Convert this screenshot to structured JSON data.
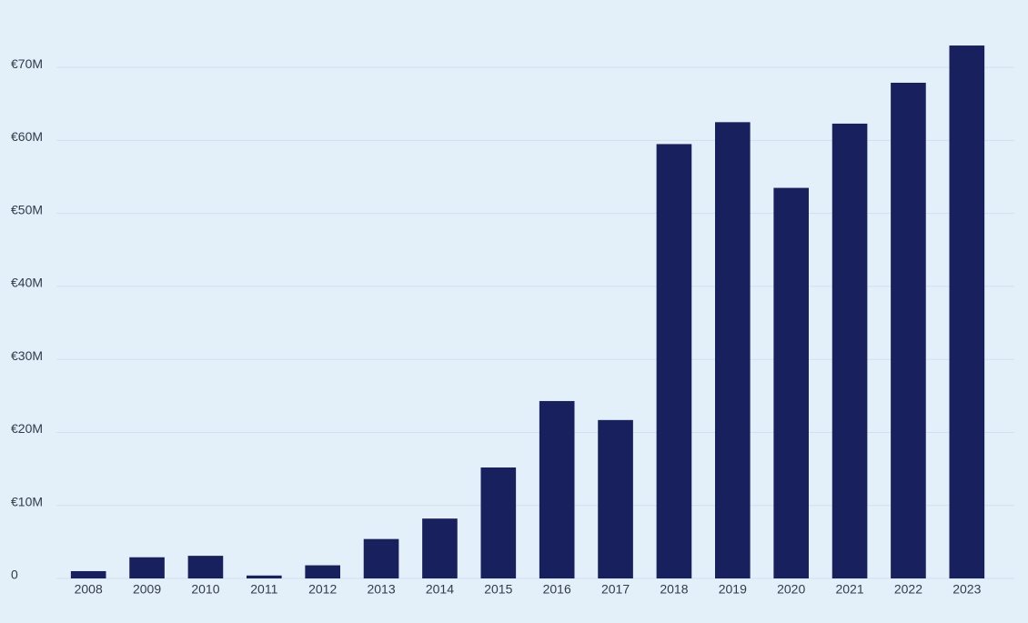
{
  "chart_data": {
    "type": "bar",
    "categories": [
      "2008",
      "2009",
      "2010",
      "2011",
      "2012",
      "2013",
      "2014",
      "2015",
      "2016",
      "2017",
      "2018",
      "2019",
      "2020",
      "2021",
      "2022",
      "2023"
    ],
    "values": [
      1000000,
      2900000,
      3100000,
      400000,
      1800000,
      5400000,
      8200000,
      15200000,
      24300000,
      21700000,
      59500000,
      62500000,
      53500000,
      62300000,
      67900000,
      73000000
    ],
    "color": "#18205e",
    "ylim": [
      0,
      75000000
    ],
    "yticks": [
      0,
      {
        "value": 10000000,
        "label": "€10M"
      },
      {
        "value": 20000000,
        "label": "€20M"
      },
      {
        "value": 30000000,
        "label": "€30M"
      },
      {
        "value": 40000000,
        "label": "€40M"
      },
      {
        "value": 50000000,
        "label": "€50M"
      },
      {
        "value": 60000000,
        "label": "€60M"
      },
      {
        "value": 70000000,
        "label": "€70M"
      }
    ],
    "grid": true
  }
}
